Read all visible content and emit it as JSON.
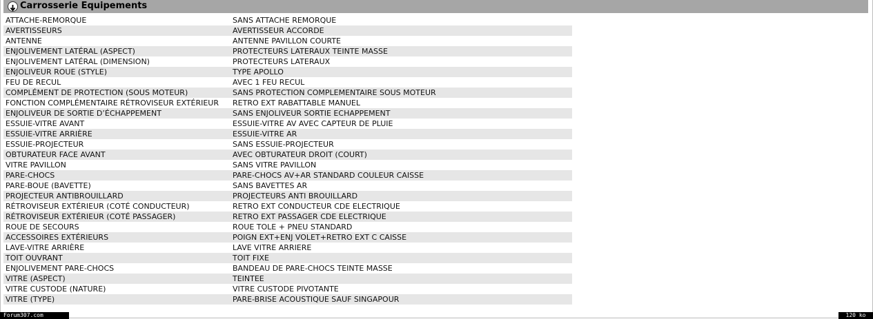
{
  "section": {
    "title": "Carrosserie Equipements",
    "rows": [
      [
        "ATTACHE-REMORQUE",
        "SANS ATTACHE REMORQUE"
      ],
      [
        "AVERTISSEURS",
        "AVERTISSEUR ACCORDE"
      ],
      [
        "ANTENNE",
        "ANTENNE PAVILLON COURTE"
      ],
      [
        "ENJOLIVEMENT LATÉRAL (ASPECT)",
        "PROTECTEURS LATERAUX TEINTE MASSE"
      ],
      [
        "ENJOLIVEMENT LATÉRAL (DIMENSION)",
        "PROTECTEURS LATERAUX"
      ],
      [
        "ENJOLIVEUR ROUE (STYLE)",
        "TYPE APOLLO"
      ],
      [
        "FEU DE RECUL",
        "AVEC 1 FEU RECUL"
      ],
      [
        "COMPLÉMENT DE PROTECTION (SOUS MOTEUR)",
        "SANS PROTECTION COMPLEMENTAIRE SOUS MOTEUR"
      ],
      [
        "FONCTION COMPLÉMENTAIRE RÉTROVISEUR EXTÉRIEUR",
        "RETRO EXT RABATTABLE MANUEL"
      ],
      [
        "ENJOLIVEUR DE SORTIE D’ÉCHAPPEMENT",
        "SANS ENJOLIVEUR SORTIE ECHAPPEMENT"
      ],
      [
        "ESSUIE-VITRE AVANT",
        "ESSUIE-VITRE AV AVEC CAPTEUR DE PLUIE"
      ],
      [
        "ESSUIE-VITRE ARRIÈRE",
        "ESSUIE-VITRE AR"
      ],
      [
        "ESSUIE-PROJECTEUR",
        "SANS ESSUIE-PROJECTEUR"
      ],
      [
        "OBTURATEUR FACE AVANT",
        "AVEC OBTURATEUR DROIT (COURT)"
      ],
      [
        "VITRE PAVILLON",
        "SANS VITRE PAVILLON"
      ],
      [
        "PARE-CHOCS",
        "PARE-CHOCS AV+AR STANDARD COULEUR CAISSE"
      ],
      [
        "PARE-BOUE (BAVETTE)",
        "SANS BAVETTES AR"
      ],
      [
        "PROJECTEUR ANTIBROUILLARD",
        "PROJECTEURS ANTI BROUILLARD"
      ],
      [
        "RÉTROVISEUR EXTÉRIEUR (COTÉ CONDUCTEUR)",
        "RETRO EXT CONDUCTEUR CDE ELECTRIQUE"
      ],
      [
        "RÉTROVISEUR EXTÉRIEUR (COTÉ PASSAGER)",
        "RETRO EXT PASSAGER CDE ELECTRIQUE"
      ],
      [
        "ROUE DE SECOURS",
        "ROUE TOLE + PNEU STANDARD"
      ],
      [
        "ACCESSOIRES EXTÉRIEURS",
        "POIGN EXT+ENJ VOLET+RETRO EXT C CAISSE"
      ],
      [
        "LAVE-VITRE ARRIÈRE",
        "LAVE VITRE ARRIERE"
      ],
      [
        "TOIT OUVRANT",
        "TOIT FIXE"
      ],
      [
        "ENJOLIVEMENT PARE-CHOCS",
        "BANDEAU DE PARE-CHOCS TEINTE MASSE"
      ],
      [
        "VITRE (ASPECT)",
        "TEINTEE"
      ],
      [
        "VITRE CUSTODE (NATURE)",
        "VITRE CUSTODE PIVOTANTE"
      ],
      [
        "VITRE (TYPE)",
        "PARE-BRISE ACOUSTIQUE SAUF SINGAPOUR"
      ]
    ]
  },
  "footer": {
    "watermark": "Forum307.com",
    "size": "120 ko"
  }
}
